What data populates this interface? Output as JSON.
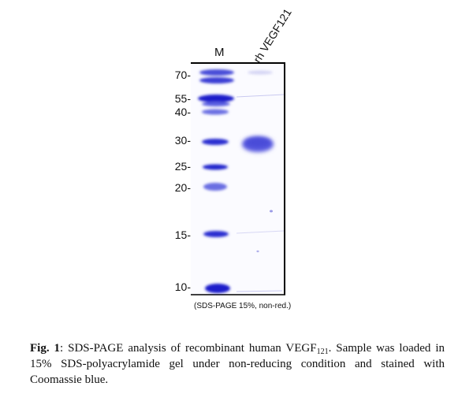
{
  "lanes": {
    "marker": "M",
    "sample": "rh VEGF121"
  },
  "markers": [
    {
      "label": "70-",
      "kda": 70
    },
    {
      "label": "55-",
      "kda": 55
    },
    {
      "label": "40-",
      "kda": 40
    },
    {
      "label": "30-",
      "kda": 30
    },
    {
      "label": "25-",
      "kda": 25
    },
    {
      "label": "20-",
      "kda": 20
    },
    {
      "label": "15-",
      "kda": 15
    },
    {
      "label": "10-",
      "kda": 10
    }
  ],
  "gel_caption": "(SDS-PAGE 15%, non-red.)",
  "caption": {
    "prefix": "Fig. 1",
    "text_1": ": SDS-PAGE analysis of recombinant human VEGF",
    "subscript": "121",
    "text_2": ". Sample was loaded in 15% SDS-polyacrylamide gel under non-reducing condition and stained with Coomassie blue."
  },
  "colors": {
    "band": "#2a2fd0",
    "band_light": "#6a6ae0",
    "gel_background": "#fbfbff",
    "gel_border": "#000000"
  }
}
